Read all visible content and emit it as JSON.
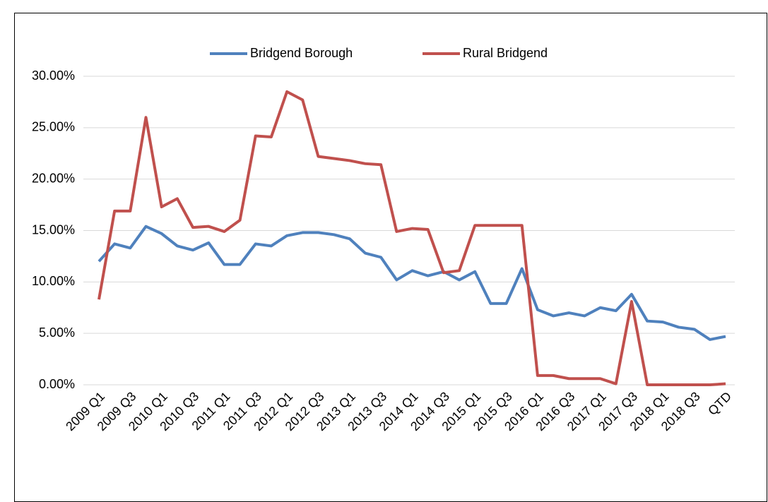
{
  "chart_data": {
    "type": "line",
    "categories": [
      "2009 Q1",
      null,
      "2009 Q3",
      null,
      "2010 Q1",
      null,
      "2010 Q3",
      null,
      "2011 Q1",
      null,
      "2011 Q3",
      null,
      "2012 Q1",
      null,
      "2012 Q3",
      null,
      "2013 Q1",
      null,
      "2013 Q3",
      null,
      "2014 Q1",
      null,
      "2014 Q3",
      null,
      "2015 Q1",
      null,
      "2015 Q3",
      null,
      "2016 Q1",
      null,
      "2016 Q3",
      null,
      "2017 Q1",
      null,
      "2017 Q3",
      null,
      "2018 Q1",
      null,
      "2018 Q3",
      null,
      "QTD"
    ],
    "series": [
      {
        "name": "Bridgend Borough",
        "color": "#4f81bd",
        "values": [
          12.0,
          13.7,
          13.3,
          15.4,
          14.7,
          13.5,
          13.1,
          13.8,
          11.7,
          11.7,
          13.7,
          13.5,
          14.5,
          14.8,
          14.8,
          14.6,
          14.2,
          12.8,
          12.4,
          10.2,
          11.1,
          10.6,
          11.0,
          10.2,
          11.0,
          7.9,
          7.9,
          11.3,
          7.3,
          6.7,
          7.0,
          6.7,
          7.5,
          7.2,
          8.8,
          6.2,
          6.1,
          5.6,
          5.4,
          4.4,
          4.7
        ]
      },
      {
        "name": "Rural Bridgend",
        "color": "#c0504d",
        "values": [
          8.3,
          16.9,
          16.9,
          26.0,
          17.3,
          18.1,
          15.3,
          15.4,
          14.9,
          16.0,
          24.2,
          24.1,
          28.5,
          27.7,
          22.2,
          22.0,
          21.8,
          21.5,
          21.4,
          14.9,
          15.2,
          15.1,
          10.9,
          11.1,
          15.5,
          15.5,
          15.5,
          15.5,
          0.9,
          0.9,
          0.6,
          0.6,
          0.6,
          0.1,
          8.1,
          0.0,
          0.0,
          0.0,
          0.0,
          0.0,
          0.1
        ]
      }
    ],
    "ylim": [
      0,
      30
    ],
    "yticks": [
      {
        "value": 0,
        "label": "0.00%"
      },
      {
        "value": 5,
        "label": "5.00%"
      },
      {
        "value": 10,
        "label": "10.00%"
      },
      {
        "value": 15,
        "label": "15.00%"
      },
      {
        "value": 20,
        "label": "20.00%"
      },
      {
        "value": 25,
        "label": "25.00%"
      },
      {
        "value": 30,
        "label": "30.00%"
      }
    ],
    "grid": true,
    "legend": "top"
  }
}
